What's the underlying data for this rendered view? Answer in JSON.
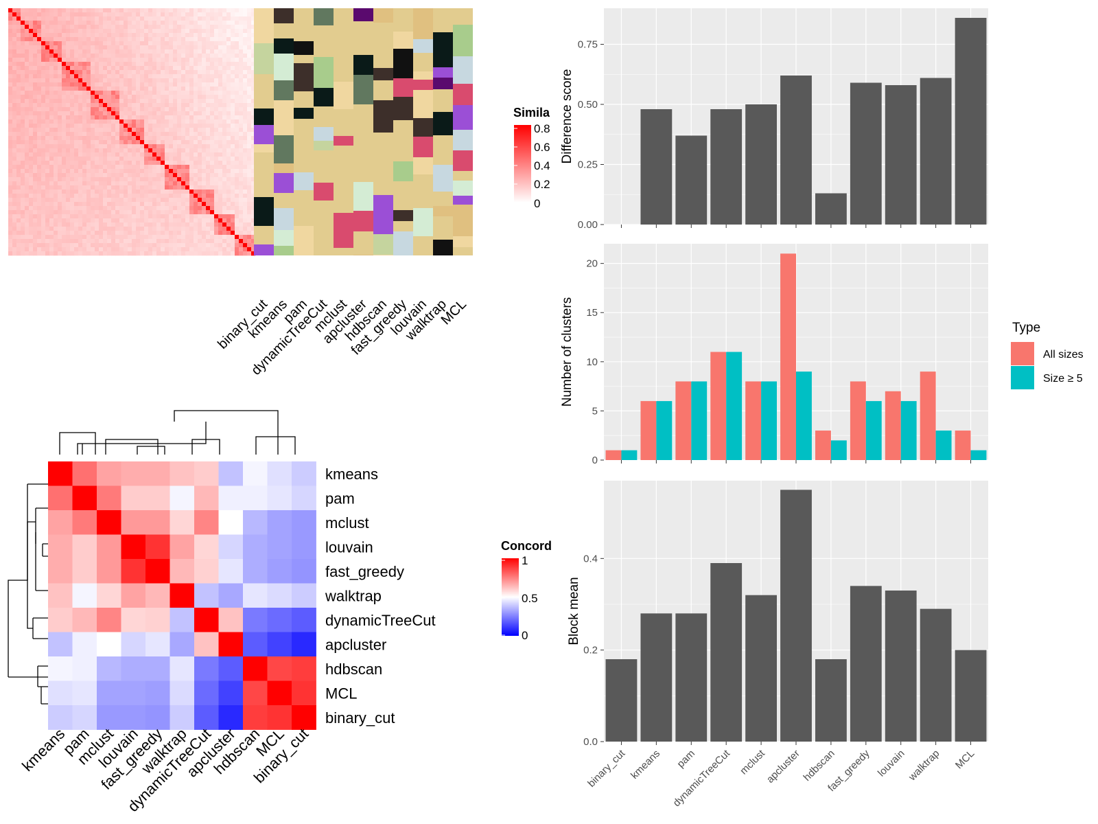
{
  "method_order": [
    "binary_cut",
    "kmeans",
    "pam",
    "dynamicTreeCut",
    "mclust",
    "apcluster",
    "hdbscan",
    "fast_greedy",
    "louvain",
    "walktrap",
    "MCL"
  ],
  "colors": {
    "panel_bg": "#ebebeb",
    "bar": "#595959",
    "all_sizes": "#f8766d",
    "size_ge_5": "#00bfc4",
    "tan": "#e2cc8f",
    "sim_high": "#ff0000",
    "conc_low": "#0000ff"
  },
  "similarity_heatmap": {
    "legend_title": "Simila",
    "legend_ticks": [
      "0.8",
      "0.6",
      "0.4",
      "0.2",
      "0"
    ],
    "column_labels": [
      "binary_cut",
      "kmeans",
      "pam",
      "dynamicTreeCut",
      "mclust",
      "apcluster",
      "hdbscan",
      "fast_greedy",
      "louvain",
      "walktrap",
      "MCL"
    ]
  },
  "concordance_heatmap": {
    "legend_title": "Concord",
    "legend_ticks": [
      "1",
      "0.5",
      "0"
    ],
    "labels": [
      "kmeans",
      "pam",
      "mclust",
      "louvain",
      "fast_greedy",
      "walktrap",
      "dynamicTreeCut",
      "apcluster",
      "hdbscan",
      "MCL",
      "binary_cut"
    ],
    "matrix": [
      [
        1.0,
        0.78,
        0.68,
        0.66,
        0.66,
        0.62,
        0.6,
        0.38,
        0.48,
        0.44,
        0.4
      ],
      [
        0.78,
        1.0,
        0.76,
        0.6,
        0.6,
        0.48,
        0.64,
        0.47,
        0.47,
        0.45,
        0.42
      ],
      [
        0.68,
        0.76,
        1.0,
        0.7,
        0.7,
        0.58,
        0.74,
        0.5,
        0.36,
        0.32,
        0.3
      ],
      [
        0.66,
        0.6,
        0.7,
        1.0,
        0.9,
        0.68,
        0.58,
        0.42,
        0.34,
        0.32,
        0.3
      ],
      [
        0.66,
        0.6,
        0.7,
        0.9,
        1.0,
        0.64,
        0.59,
        0.45,
        0.34,
        0.31,
        0.29
      ],
      [
        0.62,
        0.48,
        0.58,
        0.68,
        0.64,
        1.0,
        0.38,
        0.33,
        0.45,
        0.43,
        0.4
      ],
      [
        0.6,
        0.64,
        0.74,
        0.58,
        0.59,
        0.38,
        1.0,
        0.62,
        0.24,
        0.21,
        0.18
      ],
      [
        0.38,
        0.47,
        0.5,
        0.42,
        0.45,
        0.33,
        0.62,
        1.0,
        0.18,
        0.13,
        0.08
      ],
      [
        0.48,
        0.47,
        0.36,
        0.34,
        0.34,
        0.45,
        0.24,
        0.18,
        1.0,
        0.86,
        0.88
      ],
      [
        0.44,
        0.45,
        0.32,
        0.32,
        0.31,
        0.43,
        0.21,
        0.13,
        0.86,
        1.0,
        0.9
      ],
      [
        0.4,
        0.42,
        0.3,
        0.3,
        0.29,
        0.4,
        0.18,
        0.08,
        0.88,
        0.9,
        1.0
      ]
    ]
  },
  "chart_data": [
    {
      "type": "bar",
      "ylabel": "Difference score",
      "categories": [
        "binary_cut",
        "kmeans",
        "pam",
        "dynamicTreeCut",
        "mclust",
        "apcluster",
        "hdbscan",
        "fast_greedy",
        "louvain",
        "walktrap",
        "MCL"
      ],
      "values": [
        0.0,
        0.48,
        0.37,
        0.48,
        0.5,
        0.62,
        0.13,
        0.59,
        0.58,
        0.61,
        0.86
      ],
      "ylim": [
        0,
        0.9
      ],
      "yticks": [
        "0.00",
        "0.25",
        "0.50",
        "0.75"
      ],
      "ytick_values": [
        0,
        0.25,
        0.5,
        0.75
      ]
    },
    {
      "type": "bar",
      "ylabel": "Number of clusters",
      "categories": [
        "binary_cut",
        "kmeans",
        "pam",
        "dynamicTreeCut",
        "mclust",
        "apcluster",
        "hdbscan",
        "fast_greedy",
        "louvain",
        "walktrap",
        "MCL"
      ],
      "series": [
        {
          "name": "All sizes",
          "values": [
            1,
            6,
            8,
            11,
            8,
            21,
            3,
            8,
            7,
            9,
            3
          ]
        },
        {
          "name": "Size ≥ 5",
          "values": [
            1,
            6,
            8,
            11,
            8,
            9,
            2,
            6,
            6,
            3,
            1
          ]
        }
      ],
      "ylim": [
        0,
        22
      ],
      "yticks": [
        "0",
        "5",
        "10",
        "15",
        "20"
      ],
      "ytick_values": [
        0,
        5,
        10,
        15,
        20
      ],
      "legend": {
        "title": "Type",
        "position": "right"
      }
    },
    {
      "type": "bar",
      "ylabel": "Block mean",
      "categories": [
        "binary_cut",
        "kmeans",
        "pam",
        "dynamicTreeCut",
        "mclust",
        "apcluster",
        "hdbscan",
        "fast_greedy",
        "louvain",
        "walktrap",
        "MCL"
      ],
      "values": [
        0.18,
        0.28,
        0.28,
        0.39,
        0.32,
        0.55,
        0.18,
        0.34,
        0.33,
        0.29,
        0.2
      ],
      "ylim": [
        0,
        0.57
      ],
      "yticks": [
        "0.0",
        "0.2",
        "0.4"
      ],
      "ytick_values": [
        0,
        0.2,
        0.4
      ]
    }
  ]
}
